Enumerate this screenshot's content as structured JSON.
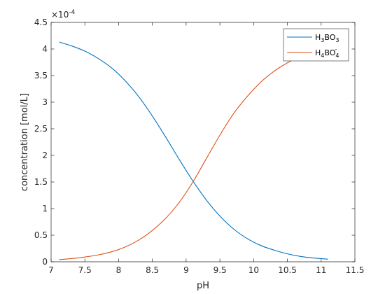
{
  "chart_data": {
    "type": "line",
    "xlabel": "pH",
    "ylabel": "concentration [mol/L]",
    "y_exponent_label": "×10",
    "y_exponent_power": "-4",
    "y_multiplier": 0.0001,
    "xlim": [
      7,
      11.5
    ],
    "ylim": [
      0,
      0.00045
    ],
    "xticks": [
      "7",
      "7.5",
      "8",
      "8.5",
      "9",
      "9.5",
      "10",
      "10.5",
      "11",
      "11.5"
    ],
    "yticks": [
      "0",
      "0.5",
      "1",
      "1.5",
      "2",
      "2.5",
      "3",
      "3.5",
      "4",
      "4.5"
    ],
    "grid": false,
    "legend_position": "top-right",
    "series": [
      {
        "name": "H3BO3",
        "legend_parts": {
          "a": "H",
          "sub1": "3",
          "b": "BO",
          "sub2": "3",
          "sup": ""
        },
        "color": "#0072BD",
        "x": [
          7.12,
          7.3,
          7.5,
          7.7,
          7.9,
          8.1,
          8.3,
          8.5,
          8.7,
          8.9,
          9.1,
          9.3,
          9.5,
          9.7,
          9.9,
          10.1,
          10.3,
          10.5,
          10.7,
          10.9,
          11.1
        ],
        "y": [
          0.000413,
          0.000406,
          0.000396,
          0.000382,
          0.000364,
          0.00034,
          0.00031,
          0.000274,
          0.000234,
          0.000192,
          0.000152,
          0.000116,
          8.6e-05,
          6.2e-05,
          4.4e-05,
          3.1e-05,
          2.2e-05,
          1.5e-05,
          1e-05,
          7e-06,
          5e-06
        ]
      },
      {
        "name": "H4BO4-",
        "legend_parts": {
          "a": "H",
          "sub1": "4",
          "b": "BO",
          "sub2": "4",
          "sup": "-"
        },
        "color": "#D95319",
        "x": [
          7.12,
          7.3,
          7.5,
          7.7,
          7.9,
          8.1,
          8.3,
          8.5,
          8.7,
          8.9,
          9.1,
          9.3,
          9.5,
          9.7,
          9.9,
          10.1,
          10.3,
          10.5,
          10.7,
          10.9,
          11.1
        ],
        "y": [
          4e-06,
          6e-06,
          9e-06,
          1.3e-05,
          1.9e-05,
          2.8e-05,
          4.1e-05,
          5.9e-05,
          8.2e-05,
          0.000112,
          0.00015,
          0.000194,
          0.000238,
          0.000278,
          0.00031,
          0.000337,
          0.000358,
          0.000374,
          0.000387,
          0.000397,
          0.000405
        ]
      }
    ]
  }
}
